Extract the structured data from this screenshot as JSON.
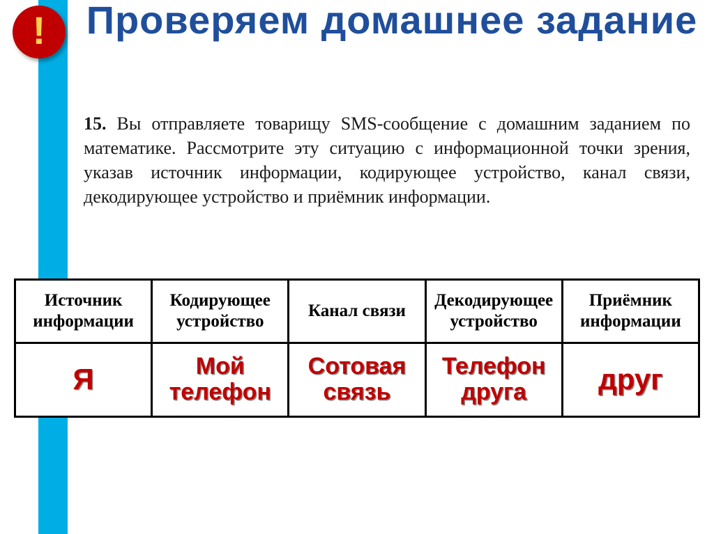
{
  "badge_text": "!",
  "title": "Проверяем домашнее задание",
  "question": {
    "number": "15.",
    "text": "Вы отправляете товарищу SMS-сообщение с домашним заданием по математике. Рассмотрите эту ситуацию с информационной точки зрения, указав источник информации, кодирующее устройство, канал связи, декодирующее устройство и приёмник информации."
  },
  "table": {
    "headers": [
      "Источник инфор­мации",
      "Коди­рующее устройство",
      "Канал связи",
      "Декоди­рующее устройство",
      "Приёмник инфор­мации"
    ],
    "answers": [
      "Я",
      "Мой телефон",
      "Сотовая связь",
      "Телефон друга",
      "друг"
    ]
  },
  "colors": {
    "stripe": "#00aee6",
    "badge_bg": "#c00000",
    "badge_fg": "#ffd24d",
    "title": "#1f4e9b",
    "answer_text": "#c00000",
    "border": "#000000",
    "background": "#ffffff"
  }
}
